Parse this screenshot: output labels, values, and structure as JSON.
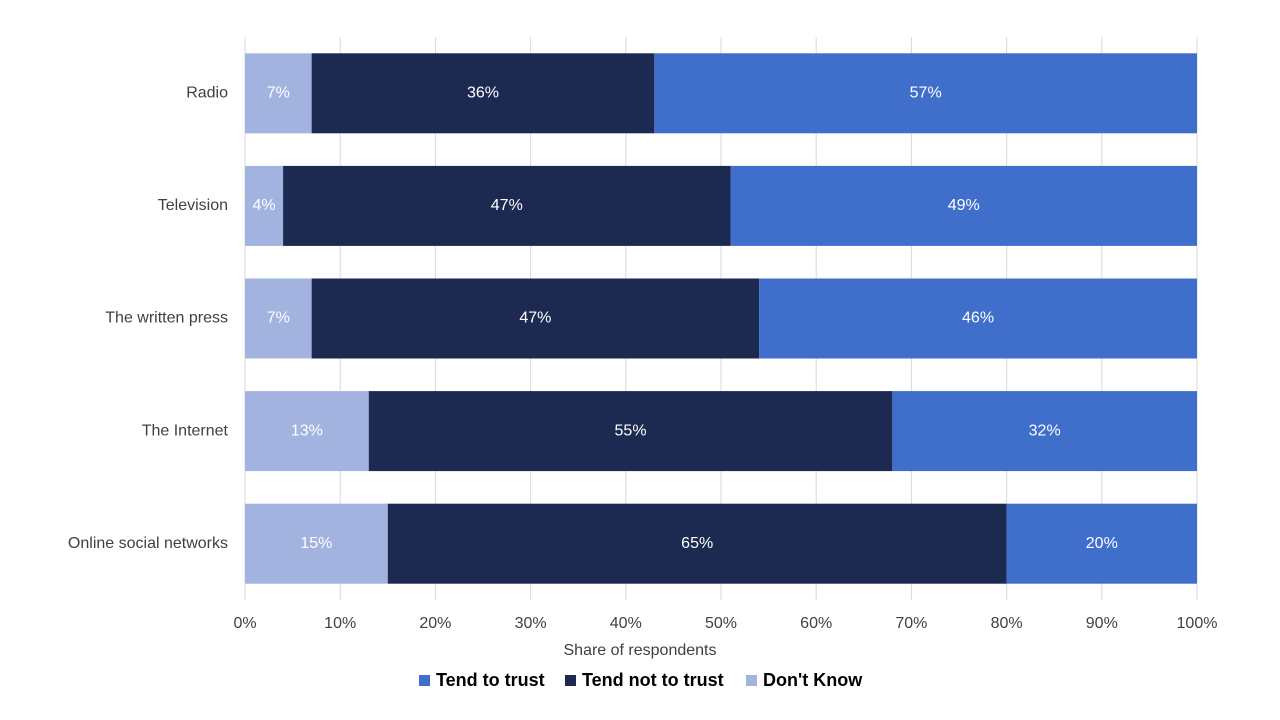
{
  "chart_data": {
    "type": "stacked-bar-horizontal",
    "x_label": "Share of respondents",
    "categories": [
      "Radio",
      "Television",
      "The written press",
      "The Internet",
      "Online social networks"
    ],
    "series": [
      {
        "name": "Tend to trust",
        "color": "#3f6fcb",
        "values": [
          57,
          49,
          46,
          32,
          20
        ],
        "value_labels": [
          "57%",
          "49%",
          "46%",
          "32%",
          "20%"
        ]
      },
      {
        "name": "Tend not to trust",
        "color": "#1c2a52",
        "values": [
          36,
          47,
          47,
          55,
          65
        ],
        "value_labels": [
          "36%",
          "47%",
          "47%",
          "55%",
          "65%"
        ]
      },
      {
        "name": "Don't Know",
        "color": "#a3b3df",
        "values": [
          7,
          4,
          7,
          13,
          15
        ],
        "value_labels": [
          "7%",
          "4%",
          "7%",
          "13%",
          "15%"
        ]
      }
    ],
    "xlim": [
      0,
      100
    ],
    "xticks": [
      {
        "value": 0,
        "label": "0%"
      },
      {
        "value": 10,
        "label": "10%"
      },
      {
        "value": 20,
        "label": "20%"
      },
      {
        "value": 30,
        "label": "30%"
      },
      {
        "value": 40,
        "label": "40%"
      },
      {
        "value": 50,
        "label": "50%"
      },
      {
        "value": 60,
        "label": "60%"
      },
      {
        "value": 70,
        "label": "70%"
      },
      {
        "value": 80,
        "label": "80%"
      },
      {
        "value": 90,
        "label": "90%"
      },
      {
        "value": 100,
        "label": "100%"
      }
    ],
    "grid": true,
    "legend": "bottom"
  }
}
